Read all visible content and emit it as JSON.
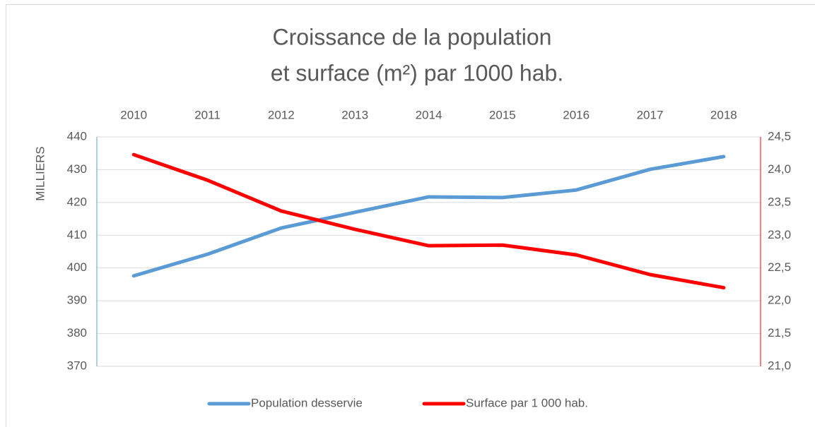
{
  "chart_data": {
    "type": "line",
    "title": [
      "Croissance de la population",
      "et surface (m²) par 1000 hab."
    ],
    "ylabel": "MILLIERS",
    "categories": [
      "2010",
      "2011",
      "2012",
      "2013",
      "2014",
      "2015",
      "2016",
      "2017",
      "2018"
    ],
    "series": [
      {
        "name": "Population desservie",
        "color": "#5b9bd5",
        "values": [
          397.6,
          404.2,
          412.2,
          417,
          421.7,
          421.5,
          423.8,
          430.1,
          434
        ]
      },
      {
        "name": "Surface par 1 000 hab.",
        "color": "#ff0000",
        "axis": "y2",
        "values": [
          24.23,
          23.84,
          23.37,
          23.09,
          22.84,
          22.85,
          22.7,
          22.4,
          22.2
        ]
      }
    ],
    "ylim": [
      370,
      440
    ],
    "yticks": [
      370,
      380,
      390,
      400,
      410,
      420,
      430,
      440
    ],
    "y2lim": [
      21,
      24.5
    ],
    "y2ticks": [
      {
        "value": 21,
        "label": "21,0"
      },
      {
        "value": 21.5,
        "label": "21,5"
      },
      {
        "value": 22,
        "label": "22,0"
      },
      {
        "value": 22.5,
        "label": "22,5"
      },
      {
        "value": 23,
        "label": "23,0"
      },
      {
        "value": 23.5,
        "label": "23,5"
      },
      {
        "value": 24,
        "label": "24,0"
      },
      {
        "value": 24.5,
        "label": "24,5"
      }
    ],
    "grid": true,
    "legend": "bottom"
  }
}
